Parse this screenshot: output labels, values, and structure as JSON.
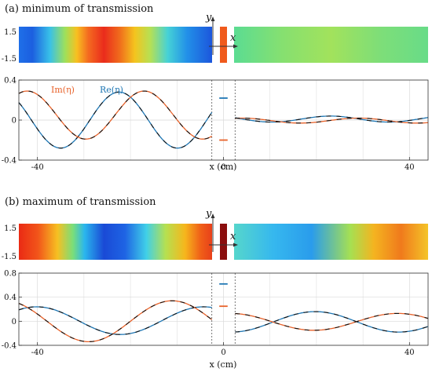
{
  "colors": {
    "re": "#1f77b4",
    "im": "#e8622a",
    "dash": "#111111",
    "grid": "#d9d9d9",
    "frame": "#333333",
    "block_a": "#f05a1c",
    "block_b": "#8a0d0d"
  },
  "axis_glyphs": {
    "y": "y",
    "x": "x"
  },
  "chart_data": [
    {
      "panel": "a",
      "type": "line",
      "title": "(a) minimum of transmission",
      "xlabel": "x (cm)",
      "ylabel": "",
      "xlim": [
        -44,
        44
      ],
      "ylim": [
        -0.4,
        0.4
      ],
      "xticks": [
        -40,
        0,
        40
      ],
      "yticks": [
        -0.4,
        0,
        0.4
      ],
      "xtick_labels": [
        "-40",
        "0",
        "40"
      ],
      "ytick_labels": [
        "-0.4",
        "0",
        "0.4"
      ],
      "grid": true,
      "gap_markers_x": [
        -2.5,
        2.5
      ],
      "legend": {
        "re": "Re(η)",
        "im": "Im(η)"
      },
      "map_ytick_labels": [
        "1.5",
        "-1.5"
      ],
      "series": [
        {
          "name": "Re(η)",
          "key": "re",
          "segments": [
            {
              "kind": "wave",
              "x0": -44,
              "x1": -2.5,
              "A": 0.28,
              "k": 0.25,
              "phi": 0.9,
              "offset": 0
            },
            {
              "kind": "const",
              "x0": -0.9,
              "x1": 0.9,
              "value": 0.22
            },
            {
              "kind": "wave",
              "x0": 2.5,
              "x1": 44,
              "A": 0.03,
              "k": 0.25,
              "phi": 2.1,
              "offset": 0.01
            }
          ]
        },
        {
          "name": "Im(η)",
          "key": "im",
          "segments": [
            {
              "kind": "wave",
              "x0": -44,
              "x1": -2.5,
              "A": 0.24,
              "k": 0.25,
              "phi": -0.45,
              "offset": 0.05
            },
            {
              "kind": "const",
              "x0": -0.9,
              "x1": 0.9,
              "value": -0.2
            },
            {
              "kind": "wave",
              "x0": 2.5,
              "x1": 44,
              "A": 0.025,
              "k": 0.25,
              "phi": 0.6,
              "offset": -0.005
            }
          ]
        }
      ]
    },
    {
      "panel": "b",
      "type": "line",
      "title": "(b) maximum of transmission",
      "xlabel": "x (cm)",
      "ylabel": "",
      "xlim": [
        -44,
        44
      ],
      "ylim": [
        -0.4,
        0.8
      ],
      "xticks": [
        -40,
        0,
        40
      ],
      "yticks": [
        -0.4,
        0,
        0.4,
        0.8
      ],
      "xtick_labels": [
        "-40",
        "0",
        "40"
      ],
      "ytick_labels": [
        "-0.4",
        "0",
        "0.4",
        "0.8"
      ],
      "grid": true,
      "gap_markers_x": [
        -2.5,
        2.5
      ],
      "map_ytick_labels": [
        "1.5",
        "-1.5"
      ],
      "series": [
        {
          "name": "Re(η)",
          "key": "re",
          "segments": [
            {
              "kind": "wave",
              "x0": -44,
              "x1": -2.5,
              "A": 0.23,
              "k": 0.175,
              "phi": 8.6,
              "offset": 0.01
            },
            {
              "kind": "const",
              "x0": -0.9,
              "x1": 0.9,
              "value": 0.62
            },
            {
              "kind": "wave",
              "x0": 2.5,
              "x1": 44,
              "A": 0.17,
              "k": 0.175,
              "phi": 4.4,
              "offset": -0.01
            }
          ]
        },
        {
          "name": "Im(η)",
          "key": "im",
          "segments": [
            {
              "kind": "wave",
              "x0": -44,
              "x1": -2.5,
              "A": 0.34,
              "k": 0.175,
              "phi": 3.5,
              "offset": 0
            },
            {
              "kind": "const",
              "x0": -0.9,
              "x1": 0.9,
              "value": 0.25
            },
            {
              "kind": "wave",
              "x0": 2.5,
              "x1": 44,
              "A": 0.14,
              "k": 0.175,
              "phi": 1.3,
              "offset": -0.01
            }
          ]
        }
      ]
    }
  ]
}
